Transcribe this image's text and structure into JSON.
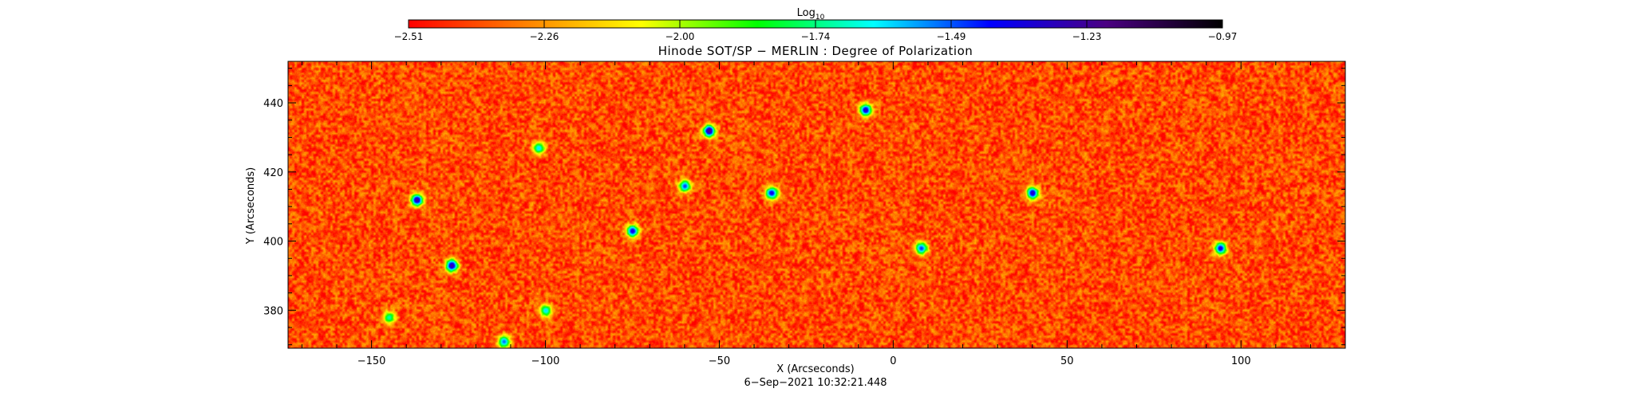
{
  "colorbar": {
    "label": "Log",
    "label_sub": "10",
    "tick_labels": [
      "−2.51",
      "−2.26",
      "−2.00",
      "−1.74",
      "−1.49",
      "−1.23",
      "−0.97"
    ],
    "range": [
      -2.51,
      -0.97
    ],
    "colors": [
      "#ff0000",
      "#ff8000",
      "#ffff00",
      "#00ff00",
      "#00ffff",
      "#0000ff",
      "#4b0082",
      "#000000"
    ]
  },
  "chart_data": {
    "type": "heatmap",
    "title": "Hinode SOT/SP − MERLIN : Degree of Polarization",
    "xlabel": "X (Arcseconds)",
    "ylabel": "Y (Arcseconds)",
    "xlim": [
      -174,
      130
    ],
    "ylim": [
      369,
      452
    ],
    "xticks": [
      -150,
      -100,
      -50,
      0,
      50,
      100
    ],
    "xtick_labels": [
      "−150",
      "−100",
      "−50",
      "0",
      "50",
      "100"
    ],
    "yticks": [
      380,
      400,
      420,
      440
    ],
    "ytick_labels": [
      "380",
      "400",
      "420",
      "440"
    ],
    "value_label": "Log10 degree of polarization",
    "background_level": -2.38,
    "features": [
      {
        "x": -53,
        "y": 432,
        "level": -1.2
      },
      {
        "x": -8,
        "y": 438,
        "level": -1.3
      },
      {
        "x": -137,
        "y": 412,
        "level": -1.25
      },
      {
        "x": -127,
        "y": 393,
        "level": -1.25
      },
      {
        "x": -75,
        "y": 403,
        "level": -1.35
      },
      {
        "x": -60,
        "y": 416,
        "level": -1.45
      },
      {
        "x": -35,
        "y": 414,
        "level": -1.35
      },
      {
        "x": 40,
        "y": 414,
        "level": -1.3
      },
      {
        "x": 8,
        "y": 398,
        "level": -1.45
      },
      {
        "x": 94,
        "y": 398,
        "level": -1.35
      },
      {
        "x": -102,
        "y": 427,
        "level": -1.6
      },
      {
        "x": -112,
        "y": 371,
        "level": -1.5
      },
      {
        "x": -145,
        "y": 378,
        "level": -1.7
      },
      {
        "x": -100,
        "y": 380,
        "level": -1.6
      }
    ]
  },
  "footer": {
    "timestamp": "6−Sep−2021 10:32:21.448"
  }
}
